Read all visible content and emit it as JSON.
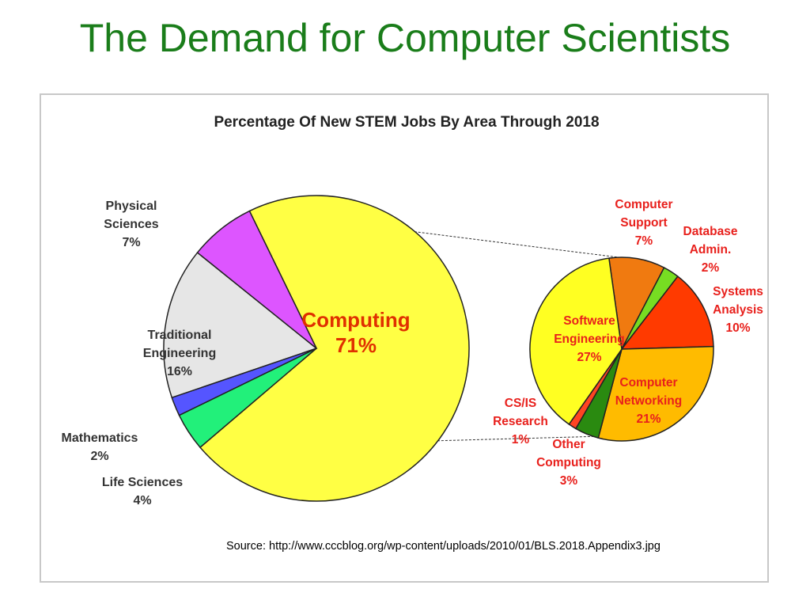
{
  "slide": {
    "title": "The Demand for Computer Scientists",
    "source": "Source: http://www.cccblog.org/wp-content/uploads/2010/01/BLS.2018.Appendix3.jpg"
  },
  "chart_data": [
    {
      "type": "pie",
      "title": "Percentage Of New STEM Jobs By Area Through 2018",
      "slices": [
        {
          "label_lines": [
            "Computing"
          ],
          "value": 71,
          "value_text": "71%",
          "color": "#ffff44"
        },
        {
          "label_lines": [
            "Life Sciences"
          ],
          "value": 4,
          "value_text": "4%",
          "color": "#22f07a"
        },
        {
          "label_lines": [
            "Mathematics"
          ],
          "value": 2,
          "value_text": "2%",
          "color": "#5555ff"
        },
        {
          "label_lines": [
            "Traditional",
            "Engineering"
          ],
          "value": 16,
          "value_text": "16%",
          "color": "#e6e6e6"
        },
        {
          "label_lines": [
            "Physical",
            "Sciences"
          ],
          "value": 7,
          "value_text": "7%",
          "color": "#dd55ff"
        }
      ]
    },
    {
      "type": "pie",
      "title": "",
      "detail_of": "Computing",
      "slices": [
        {
          "label_lines": [
            "Computer",
            "Support"
          ],
          "value": 7,
          "value_text": "7%",
          "color": "#f07a10"
        },
        {
          "label_lines": [
            "Database",
            "Admin."
          ],
          "value": 2,
          "value_text": "2%",
          "color": "#77dd22"
        },
        {
          "label_lines": [
            "Systems",
            "Analysis"
          ],
          "value": 10,
          "value_text": "10%",
          "color": "#ff3a00"
        },
        {
          "label_lines": [
            "Computer",
            "Networking"
          ],
          "value": 21,
          "value_text": "21%",
          "color": "#ffbb00"
        },
        {
          "label_lines": [
            "Other",
            "Computing"
          ],
          "value": 3,
          "value_text": "3%",
          "color": "#2a8a10"
        },
        {
          "label_lines": [
            "CS/IS",
            "Research"
          ],
          "value": 1,
          "value_text": "1%",
          "color": "#ff4422"
        },
        {
          "label_lines": [
            "Software",
            "Engineering"
          ],
          "value": 27,
          "value_text": "27%",
          "color": "#ffff22"
        }
      ]
    }
  ]
}
